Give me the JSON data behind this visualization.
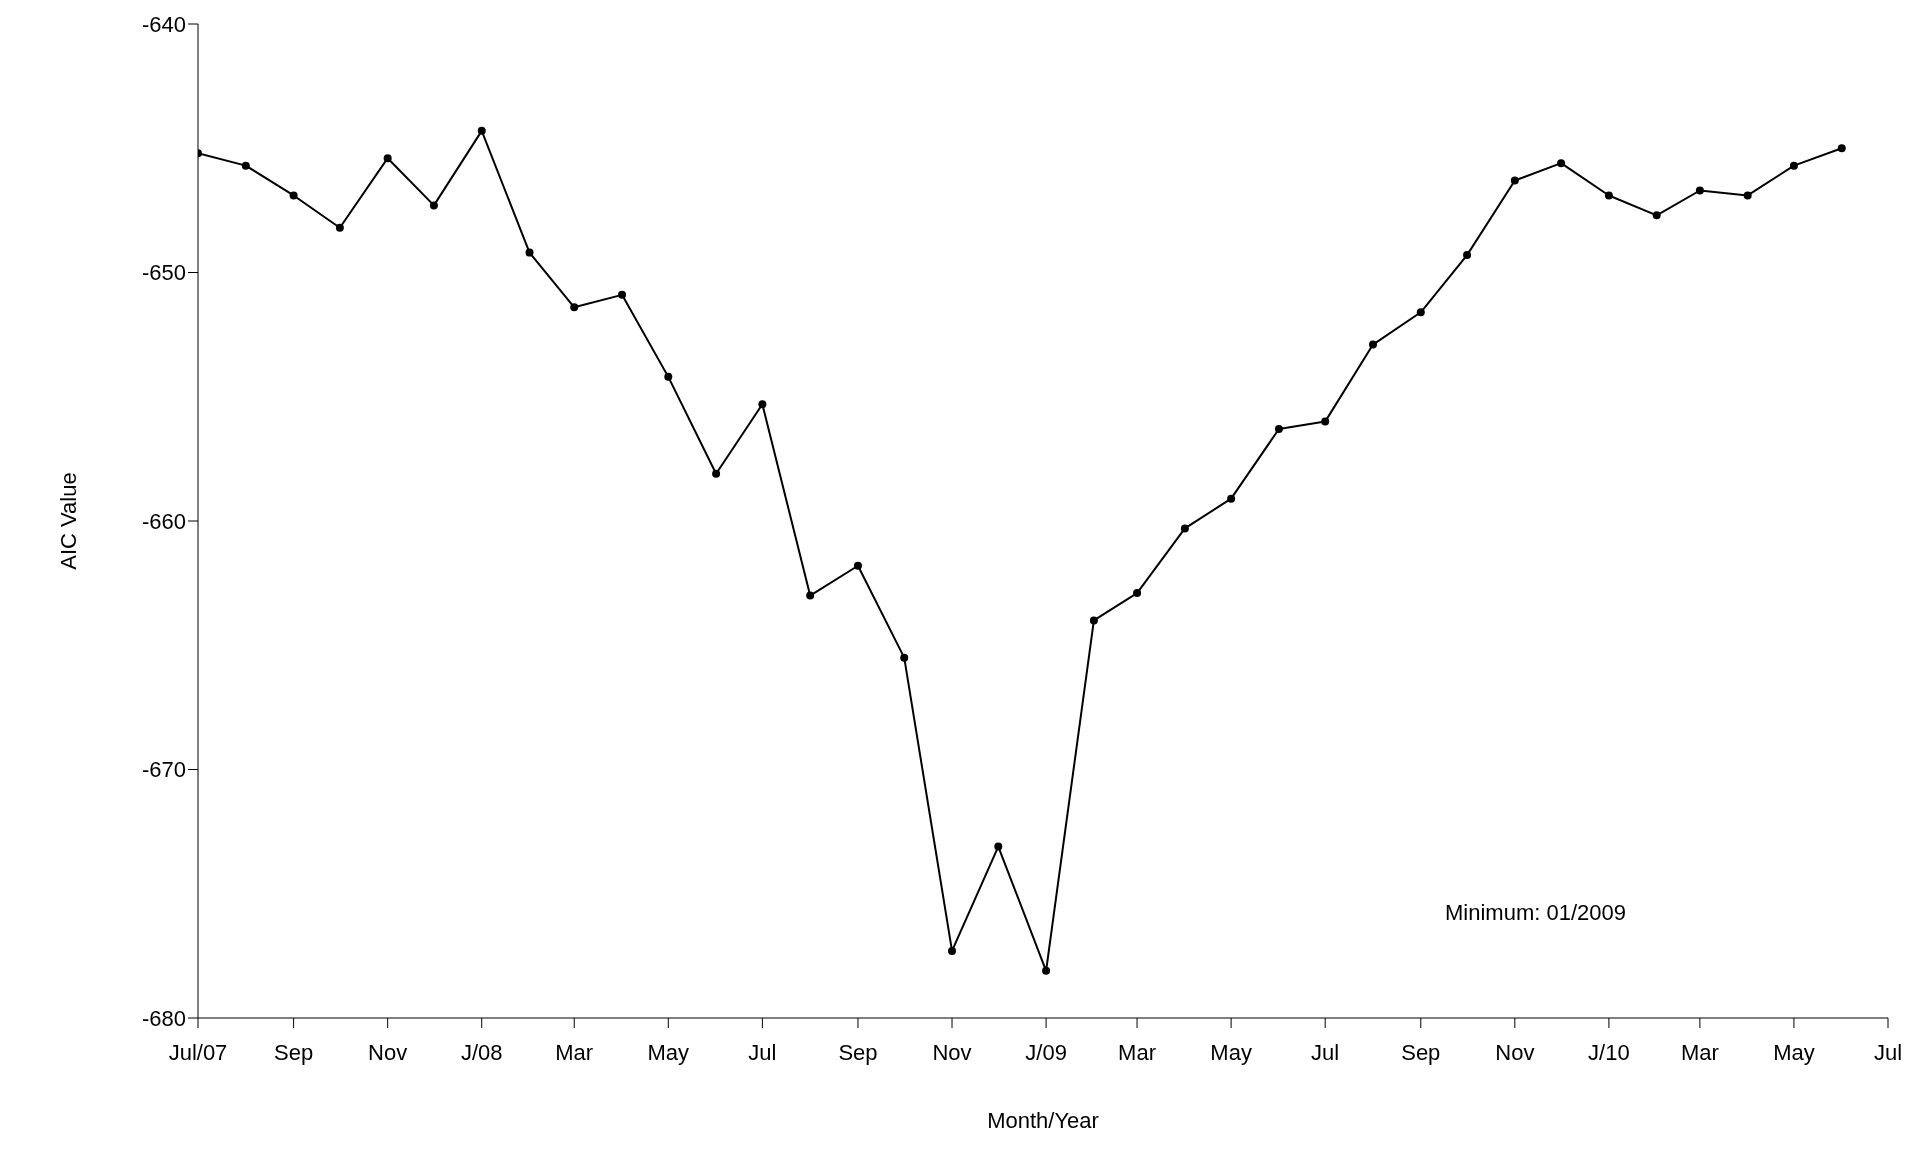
{
  "chart_data": {
    "type": "line",
    "xlabel": "Month/Year",
    "ylabel": "AIC Value",
    "x": [
      "2007-07",
      "2007-08",
      "2007-09",
      "2007-10",
      "2007-11",
      "2007-12",
      "2008-01",
      "2008-02",
      "2008-03",
      "2008-04",
      "2008-05",
      "2008-06",
      "2008-07",
      "2008-08",
      "2008-09",
      "2008-10",
      "2008-11",
      "2008-12",
      "2009-01",
      "2009-02",
      "2009-03",
      "2009-04",
      "2009-05",
      "2009-06",
      "2009-07",
      "2009-08",
      "2009-09",
      "2009-10",
      "2009-11",
      "2009-12",
      "2010-01",
      "2010-02",
      "2010-03",
      "2010-04",
      "2010-05",
      "2010-06"
    ],
    "series": [
      {
        "color": "#000000",
        "values": [
          -645.2,
          -645.7,
          -646.9,
          -648.2,
          -645.4,
          -647.3,
          -644.3,
          -649.2,
          -651.4,
          -650.9,
          -654.2,
          -658.1,
          -655.3,
          -663.0,
          -661.8,
          -665.5,
          -677.3,
          -673.1,
          -678.1,
          -664.0,
          -662.9,
          -660.3,
          -659.1,
          -656.3,
          -656.0,
          -652.9,
          -651.6,
          -649.3,
          -646.3,
          -645.6,
          -646.9,
          -647.7,
          -646.7,
          -646.9,
          -645.7,
          -645.0
        ]
      }
    ],
    "xlim": [
      "2007-07",
      "2010-07"
    ],
    "xticks": [
      {
        "value": "2007-07",
        "label": "Jul/07"
      },
      {
        "value": "2007-09",
        "label": "Sep"
      },
      {
        "value": "2007-11",
        "label": "Nov"
      },
      {
        "value": "2008-01",
        "label": "J/08"
      },
      {
        "value": "2008-03",
        "label": "Mar"
      },
      {
        "value": "2008-05",
        "label": "May"
      },
      {
        "value": "2008-07",
        "label": "Jul"
      },
      {
        "value": "2008-09",
        "label": "Sep"
      },
      {
        "value": "2008-11",
        "label": "Nov"
      },
      {
        "value": "2009-01",
        "label": "J/09"
      },
      {
        "value": "2009-03",
        "label": "Mar"
      },
      {
        "value": "2009-05",
        "label": "May"
      },
      {
        "value": "2009-07",
        "label": "Jul"
      },
      {
        "value": "2009-09",
        "label": "Sep"
      },
      {
        "value": "2009-11",
        "label": "Nov"
      },
      {
        "value": "2010-01",
        "label": "J/10"
      },
      {
        "value": "2010-03",
        "label": "Mar"
      },
      {
        "value": "2010-05",
        "label": "May"
      },
      {
        "value": "2010-07",
        "label": "Jul"
      }
    ],
    "ylim": [
      -680,
      -640
    ],
    "yticks": [
      -680,
      -670,
      -660,
      -650,
      -640
    ],
    "annotations": [
      "Minimum: 01/2009"
    ],
    "grid": false,
    "legend": false,
    "marker": "circle",
    "line_style": "solid"
  }
}
